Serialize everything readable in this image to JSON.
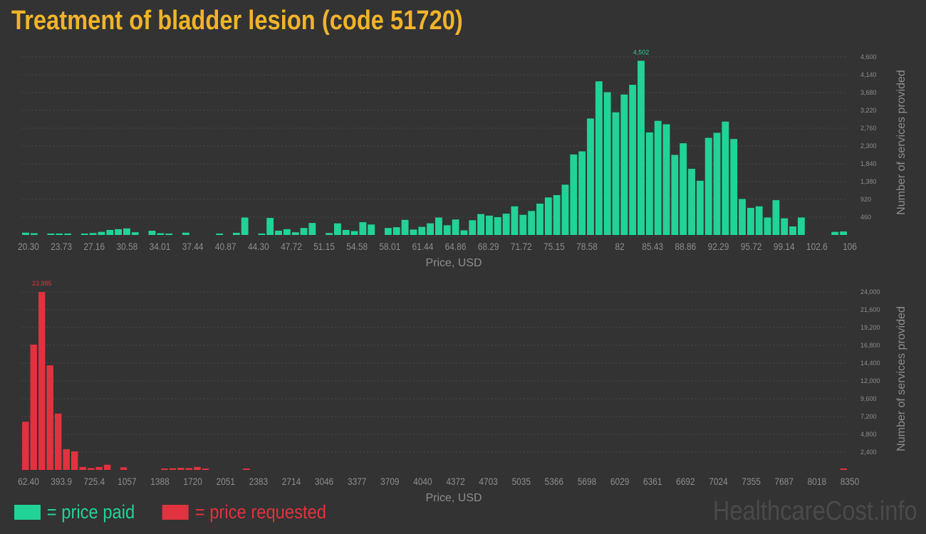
{
  "title": "Treatment of bladder lesion (code 51720)",
  "colors": {
    "background": "#333333",
    "paid": "#21d396",
    "requested": "#e0323f",
    "title": "#f0b429",
    "axis_text": "#8d8d8d"
  },
  "legend": {
    "paid_label": "= price paid",
    "requested_label": "= price requested"
  },
  "watermark": "HealthcareCost.info",
  "chart_data": [
    {
      "type": "bar",
      "series_key": "paid",
      "xlabel": "Price, USD",
      "ylabel": "Number of services provided",
      "ylim": [
        0,
        4600
      ],
      "yticks": [
        "460",
        "920",
        "1,380",
        "1,840",
        "2,300",
        "2,760",
        "3,220",
        "3,680",
        "4,140",
        "4,600"
      ],
      "xticks": [
        "20.30",
        "23.73",
        "27.16",
        "30.58",
        "34.01",
        "37.44",
        "40.87",
        "44.30",
        "47.72",
        "51.15",
        "54.58",
        "58.01",
        "61.44",
        "64.86",
        "68.29",
        "71.72",
        "75.15",
        "78.58",
        "82",
        "85.43",
        "88.86",
        "92.29",
        "95.72",
        "99.14",
        "102.6",
        "106"
      ],
      "peak_label": "4,502",
      "values": [
        60,
        45,
        0,
        25,
        25,
        20,
        0,
        20,
        50,
        80,
        130,
        150,
        170,
        70,
        0,
        110,
        45,
        25,
        0,
        60,
        0,
        0,
        0,
        25,
        0,
        55,
        450,
        0,
        20,
        440,
        110,
        150,
        70,
        180,
        310,
        0,
        50,
        300,
        130,
        100,
        330,
        270,
        0,
        180,
        200,
        390,
        140,
        210,
        300,
        450,
        250,
        400,
        120,
        380,
        540,
        500,
        460,
        550,
        740,
        520,
        620,
        810,
        970,
        1030,
        1300,
        2080,
        2160,
        3010,
        3970,
        3690,
        3170,
        3630,
        3880,
        4502,
        2650,
        2950,
        2860,
        2070,
        2370,
        1710,
        1400,
        2510,
        2640,
        2930,
        2480,
        930,
        700,
        740,
        450,
        900,
        430,
        220,
        450,
        0,
        0,
        0,
        80,
        90
      ]
    },
    {
      "type": "bar",
      "series_key": "requested",
      "xlabel": "Price, USD",
      "ylabel": "Number of services provided",
      "ylim": [
        0,
        24000
      ],
      "yticks": [
        "2,400",
        "4,800",
        "7,200",
        "9,600",
        "12,000",
        "14,400",
        "16,800",
        "19,200",
        "21,600",
        "24,000"
      ],
      "xticks": [
        "62.40",
        "393.9",
        "725.4",
        "1057",
        "1388",
        "1720",
        "2051",
        "2383",
        "2714",
        "3046",
        "3377",
        "3709",
        "4040",
        "4372",
        "4703",
        "5035",
        "5366",
        "5698",
        "6029",
        "6361",
        "6692",
        "7024",
        "7355",
        "7687",
        "8018",
        "8350"
      ],
      "peak_label": "23,985",
      "values": [
        6500,
        16900,
        23985,
        14100,
        7600,
        2800,
        2500,
        400,
        250,
        400,
        700,
        0,
        350,
        0,
        0,
        0,
        0,
        120,
        220,
        280,
        250,
        400,
        150,
        0,
        0,
        0,
        0,
        120,
        0,
        0,
        0,
        0,
        0,
        0,
        0,
        0,
        0,
        0,
        0,
        0,
        0,
        0,
        0,
        0,
        0,
        0,
        0,
        0,
        0,
        0,
        0,
        0,
        0,
        0,
        0,
        0,
        0,
        0,
        0,
        0,
        0,
        0,
        0,
        0,
        0,
        0,
        0,
        0,
        0,
        0,
        0,
        0,
        0,
        0,
        0,
        0,
        0,
        0,
        0,
        0,
        0,
        0,
        0,
        0,
        0,
        0,
        0,
        0,
        0,
        0,
        0,
        0,
        0,
        0,
        0,
        0,
        0,
        0,
        0,
        0,
        120
      ]
    }
  ]
}
